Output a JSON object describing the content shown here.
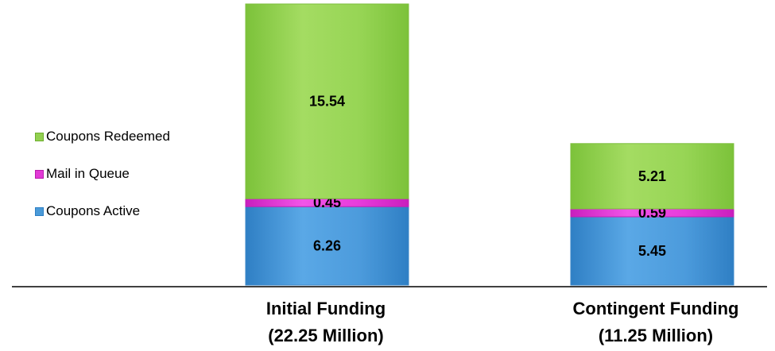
{
  "chart_data": {
    "type": "stacked-bar",
    "categories": [
      {
        "line1": "Initial Funding",
        "line2": "(22.25 Million)"
      },
      {
        "line1": "Contingent Funding",
        "line2": "(11.25 Million)"
      }
    ],
    "series": [
      {
        "name": "Coupons Active",
        "color": "#4a9ad8",
        "values": [
          6.26,
          5.45
        ]
      },
      {
        "name": "Mail in Queue",
        "color": "#e23ad6",
        "values": [
          0.45,
          0.59
        ]
      },
      {
        "name": "Coupons Redeemed",
        "color": "#92d050",
        "values": [
          15.54,
          5.21
        ]
      }
    ],
    "legend_order": [
      "Coupons Redeemed",
      "Mail in Queue",
      "Coupons Active"
    ],
    "legend_position": "left",
    "grid": false
  }
}
